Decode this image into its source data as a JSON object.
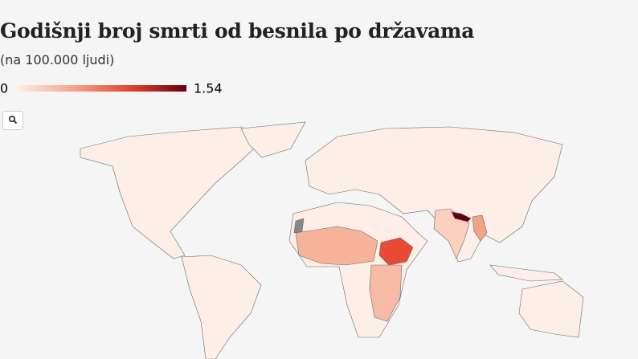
{
  "header": {
    "title": "Godišnji broj smrti od besnila po državama",
    "subtitle": "(na 100.000 ljudi)"
  },
  "legend": {
    "min": 0,
    "max": 1.54,
    "colors": [
      "#fdf1ec",
      "#f4a58a",
      "#e2462f",
      "#67000d"
    ]
  }
}
